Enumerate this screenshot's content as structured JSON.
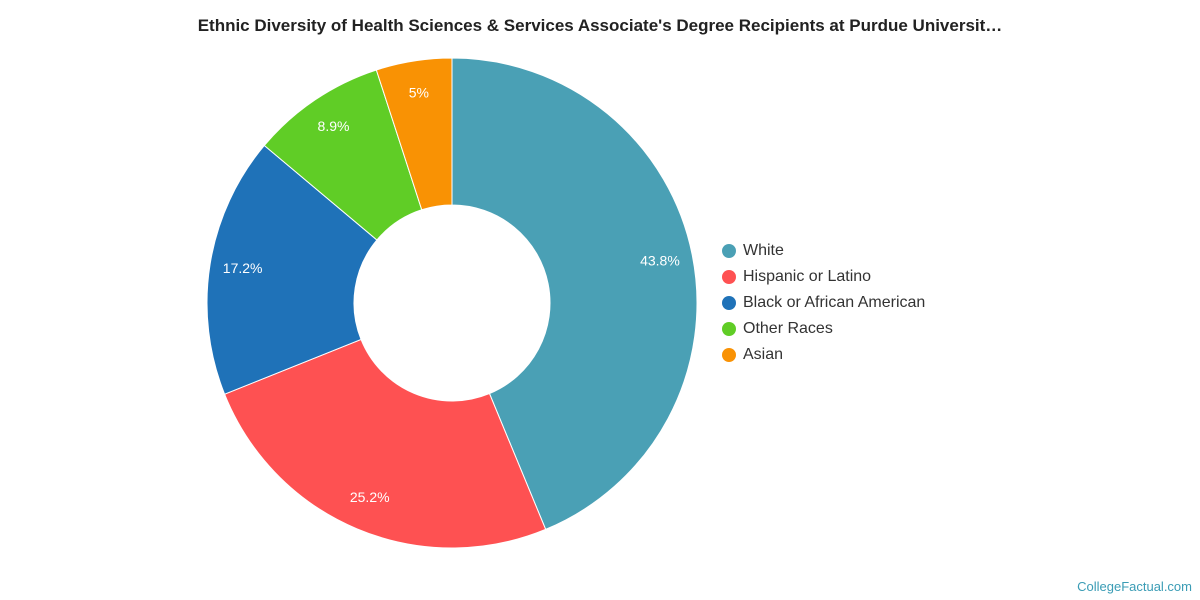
{
  "chart_data": {
    "type": "pie",
    "title": "Ethnic Diversity of Health Sciences & Services Associate's Degree Recipients at Purdue Universit…",
    "categories": [
      "White",
      "Hispanic or Latino",
      "Black or African American",
      "Other Races",
      "Asian"
    ],
    "values": [
      43.8,
      25.2,
      17.2,
      8.9,
      5
    ],
    "labels": [
      "43.8%",
      "25.2%",
      "17.2%",
      "8.9%",
      "5%"
    ],
    "colors": [
      "#4aa0b5",
      "#fe5152",
      "#1f72b8",
      "#60cd26",
      "#f99204"
    ],
    "donut": true,
    "legend_position": "right"
  },
  "footer": {
    "watermark": "CollegeFactual.com"
  }
}
